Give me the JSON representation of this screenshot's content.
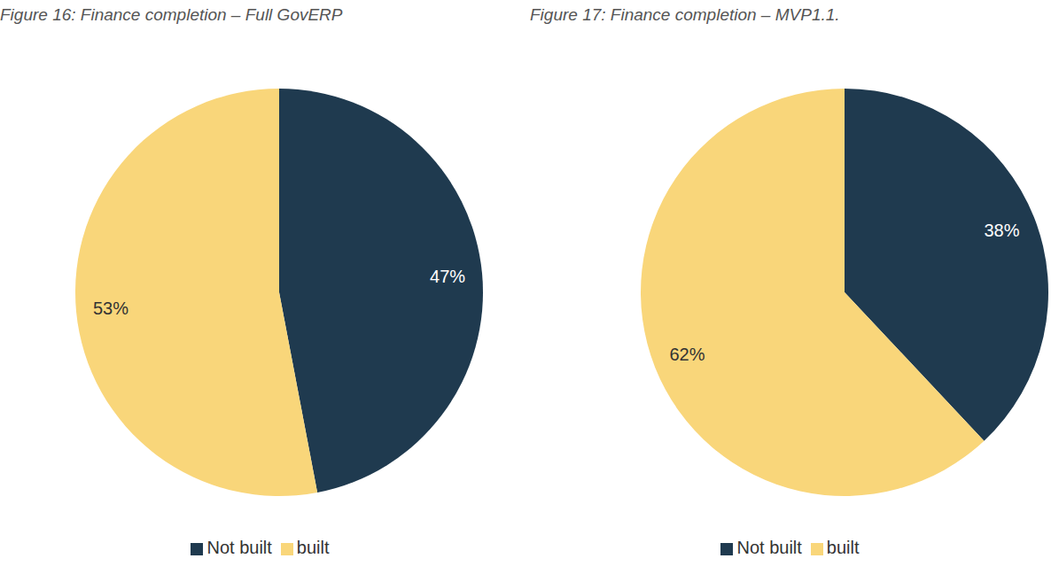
{
  "chart_data": [
    {
      "type": "pie",
      "title": "Figure 16: Finance completion – Full GovERP",
      "categories": [
        "Not built",
        "built"
      ],
      "values": [
        47,
        53
      ],
      "value_labels": [
        "47%",
        "53%"
      ],
      "colors": [
        "#1f3a4f",
        "#f9d67a"
      ],
      "data_labels": true,
      "legend": "bottom"
    },
    {
      "type": "pie",
      "title": "Figure 17: Finance completion – MVP1.1.",
      "categories": [
        "Not built",
        "built"
      ],
      "values": [
        38,
        62
      ],
      "value_labels": [
        "38%",
        "62%"
      ],
      "colors": [
        "#1f3a4f",
        "#f9d67a"
      ],
      "data_labels": true,
      "legend": "bottom"
    }
  ]
}
